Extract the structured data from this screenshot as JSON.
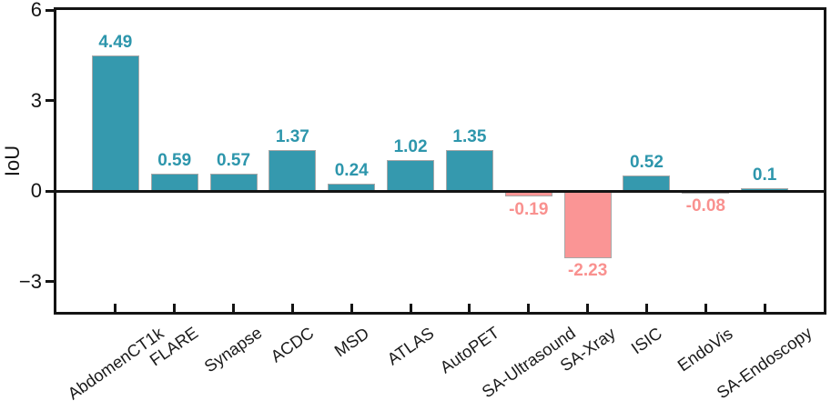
{
  "chart_data": {
    "type": "bar",
    "title": "",
    "xlabel": "",
    "ylabel": "IoU",
    "categories": [
      "AbdomenCT1k",
      "FLARE",
      "Synapse",
      "ACDC",
      "MSD",
      "ATLAS",
      "AutoPET",
      "SA-Ultrasound",
      "SA-Xray",
      "ISIC",
      "EndoVis",
      "SA-Endoscopy"
    ],
    "values": [
      4.49,
      0.59,
      0.57,
      1.37,
      0.24,
      1.02,
      1.35,
      -0.19,
      -2.23,
      0.52,
      -0.08,
      0.1
    ],
    "bar_labels": [
      "4.49",
      "0.59",
      "0.57",
      "1.37",
      "0.24",
      "1.02",
      "1.35",
      "-0.19",
      "-2.23",
      "0.52",
      "-0.08",
      "0.1"
    ],
    "ylim": [
      -4,
      6
    ],
    "yticks": [
      6,
      3,
      0,
      -3
    ],
    "ytick_labels": [
      "6",
      "3",
      "0",
      "−3"
    ],
    "grid": false,
    "legend": "none",
    "zero_line": true,
    "x_label_rotation_deg": 35,
    "colors": {
      "positive_bar": "#3599ae",
      "negative_bar": "#fa9595",
      "positive_label": "#2d96ac",
      "negative_label": "#f9918f",
      "bar_edge": "#a8a8a8",
      "axis": "#141414"
    }
  }
}
